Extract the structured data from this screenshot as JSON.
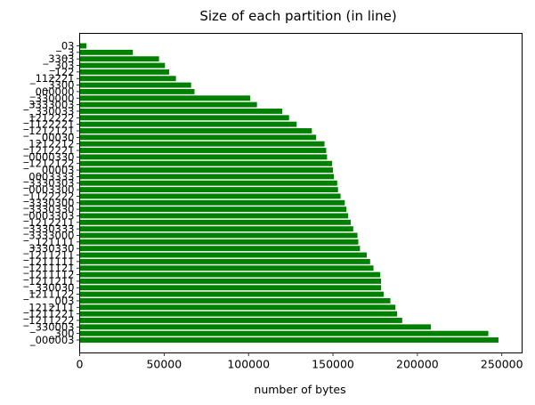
{
  "chart_data": {
    "type": "bar",
    "orientation": "horizontal",
    "title": "Size of each partition (in line)",
    "xlabel": "number of bytes",
    "ylabel": "",
    "xlim": [
      0,
      262000
    ],
    "xticks": [
      0,
      50000,
      100000,
      150000,
      200000,
      250000
    ],
    "xtick_labels": [
      "0",
      "50000",
      "100000",
      "150000",
      "200000",
      "250000"
    ],
    "grid": false,
    "bar_color": "#008000",
    "categories": [
      "_03",
      "_3",
      "_3303",
      "_303",
      "_122",
      "_112221",
      "_3300",
      "_000000",
      "_330000",
      "_3333003",
      "_330033",
      "_1212222",
      "_1122221",
      "_1212121",
      "_00030",
      "_1212212",
      "_1212221",
      "_0000330",
      "_1212122",
      "_00003",
      "_0003333",
      "_3330303",
      "_0003300",
      "_1122222",
      "_3330300",
      "_3330330",
      "_0003303",
      "_1212211",
      "_3330333",
      "_3333000",
      "_121111",
      "_3330330",
      "_1211211",
      "_1211111",
      "_1211121",
      "_1211112",
      "_1211211",
      "_330030",
      "_1211122",
      "_003",
      "_1212111",
      "_1211221",
      "_1211222",
      "_330003",
      "_300",
      "_000003"
    ],
    "values": [
      4000,
      31500,
      47000,
      50500,
      53000,
      57000,
      66000,
      68000,
      101000,
      105000,
      120000,
      124000,
      128500,
      137500,
      140000,
      145000,
      146000,
      146500,
      149500,
      150000,
      150500,
      152500,
      153000,
      154500,
      157000,
      158000,
      159000,
      160500,
      162000,
      164500,
      165000,
      166000,
      170000,
      172000,
      174000,
      178000,
      178500,
      178500,
      180000,
      184000,
      187000,
      188000,
      191000,
      208000,
      242000,
      248000
    ]
  }
}
